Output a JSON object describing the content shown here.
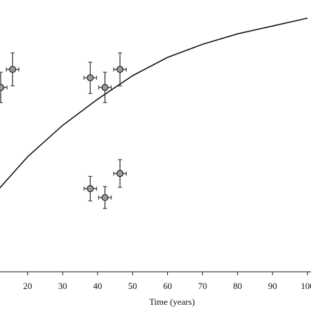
{
  "chart_data": {
    "type": "scatter",
    "xlabel": "Time (years)",
    "xlim": [
      12.1,
      101
    ],
    "xticks": [
      20,
      30,
      40,
      50,
      60,
      70,
      80,
      90,
      100
    ],
    "ylim": [
      0,
      1
    ],
    "series": [
      {
        "type": "line",
        "color": "#111111",
        "x": [
          12,
          20,
          30,
          40,
          50,
          60,
          70,
          80,
          90,
          100
        ],
        "values": [
          0.32,
          0.44,
          0.56,
          0.66,
          0.75,
          0.82,
          0.87,
          0.91,
          0.94,
          0.97
        ]
      },
      {
        "type": "points",
        "color": "#9a9a9a",
        "x": [
          12.3,
          15.7,
          37.9,
          42.1,
          46.4,
          37.9,
          42.1,
          46.4
        ],
        "values": [
          0.705,
          0.774,
          0.742,
          0.705,
          0.774,
          0.318,
          0.284,
          0.376
        ],
        "xerr": [
          1.8,
          1.8,
          1.8,
          1.8,
          1.8,
          1.8,
          1.8,
          1.8
        ],
        "yerr": [
          0.058,
          0.063,
          0.06,
          0.058,
          0.063,
          0.047,
          0.042,
          0.053
        ]
      }
    ]
  }
}
